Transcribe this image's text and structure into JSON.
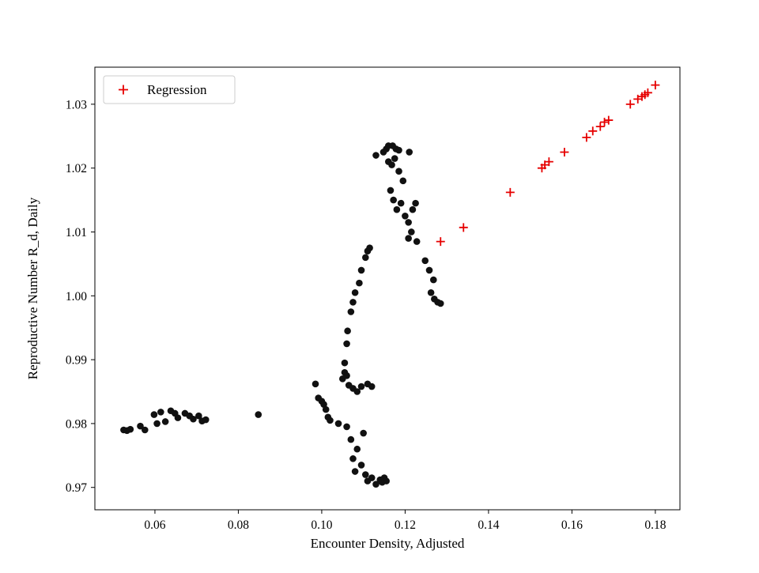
{
  "figure": {
    "background": "#ffffff"
  },
  "chart_data": {
    "type": "scatter",
    "title": "",
    "xlabel": "Encounter Density, Adjusted",
    "ylabel": "Reproductive Number R_d, Daily",
    "xlim": [
      0.0456,
      0.1859
    ],
    "ylim": [
      0.9665,
      1.0358
    ],
    "xticks": [
      0.06,
      0.08,
      0.1,
      0.12,
      0.14,
      0.16,
      0.18
    ],
    "xtick_labels": [
      "0.06",
      "0.08",
      "0.10",
      "0.12",
      "0.14",
      "0.16",
      "0.18"
    ],
    "yticks": [
      0.97,
      0.98,
      0.99,
      1.0,
      1.01,
      1.02,
      1.03
    ],
    "ytick_labels": [
      "0.97",
      "0.98",
      "0.99",
      "1.00",
      "1.01",
      "1.02",
      "1.03"
    ],
    "grid": false,
    "legend": {
      "position": "upper left",
      "entries": [
        "Regression"
      ]
    },
    "colors": {
      "observations": "#111111",
      "regression": "#e60000",
      "spine": "#000000",
      "legend_border": "#cccccc"
    },
    "series": [
      {
        "name": "observations",
        "marker": "circle",
        "color": "#111111",
        "points": [
          [
            0.0525,
            0.979
          ],
          [
            0.0533,
            0.9789
          ],
          [
            0.0541,
            0.9791
          ],
          [
            0.0565,
            0.9796
          ],
          [
            0.0576,
            0.979
          ],
          [
            0.0598,
            0.9814
          ],
          [
            0.0605,
            0.98
          ],
          [
            0.0614,
            0.9818
          ],
          [
            0.0625,
            0.9803
          ],
          [
            0.0638,
            0.982
          ],
          [
            0.0648,
            0.9816
          ],
          [
            0.0655,
            0.9809
          ],
          [
            0.0672,
            0.9816
          ],
          [
            0.0683,
            0.9812
          ],
          [
            0.0692,
            0.9807
          ],
          [
            0.0705,
            0.9812
          ],
          [
            0.0713,
            0.9804
          ],
          [
            0.0722,
            0.9806
          ],
          [
            0.0848,
            0.9814
          ],
          [
            0.0985,
            0.9862
          ],
          [
            0.0992,
            0.984
          ],
          [
            0.1,
            0.9835
          ],
          [
            0.1005,
            0.983
          ],
          [
            0.101,
            0.9822
          ],
          [
            0.1015,
            0.981
          ],
          [
            0.102,
            0.9805
          ],
          [
            0.104,
            0.98
          ],
          [
            0.105,
            0.987
          ],
          [
            0.1055,
            0.988
          ],
          [
            0.106,
            0.9875
          ],
          [
            0.1065,
            0.986
          ],
          [
            0.1075,
            0.9855
          ],
          [
            0.1085,
            0.985
          ],
          [
            0.1095,
            0.9858
          ],
          [
            0.111,
            0.9862
          ],
          [
            0.112,
            0.9858
          ],
          [
            0.106,
            0.9795
          ],
          [
            0.107,
            0.9775
          ],
          [
            0.1075,
            0.9745
          ],
          [
            0.108,
            0.9725
          ],
          [
            0.1085,
            0.976
          ],
          [
            0.1095,
            0.9735
          ],
          [
            0.11,
            0.9785
          ],
          [
            0.1105,
            0.972
          ],
          [
            0.111,
            0.971
          ],
          [
            0.112,
            0.9715
          ],
          [
            0.113,
            0.9705
          ],
          [
            0.114,
            0.9712
          ],
          [
            0.1145,
            0.9708
          ],
          [
            0.115,
            0.9715
          ],
          [
            0.1155,
            0.971
          ],
          [
            0.1055,
            0.9895
          ],
          [
            0.106,
            0.9925
          ],
          [
            0.1062,
            0.9945
          ],
          [
            0.107,
            0.9975
          ],
          [
            0.1075,
            0.999
          ],
          [
            0.108,
            1.0005
          ],
          [
            0.109,
            1.002
          ],
          [
            0.1095,
            1.004
          ],
          [
            0.1105,
            1.006
          ],
          [
            0.111,
            1.007
          ],
          [
            0.1115,
            1.0075
          ],
          [
            0.113,
            1.022
          ],
          [
            0.1148,
            1.0225
          ],
          [
            0.1155,
            1.023
          ],
          [
            0.116,
            1.0235
          ],
          [
            0.117,
            1.0235
          ],
          [
            0.1178,
            1.023
          ],
          [
            0.1185,
            1.0228
          ],
          [
            0.116,
            1.021
          ],
          [
            0.1168,
            1.0205
          ],
          [
            0.1175,
            1.0215
          ],
          [
            0.1185,
            1.0195
          ],
          [
            0.1195,
            1.018
          ],
          [
            0.121,
            1.0225
          ],
          [
            0.1165,
            1.0165
          ],
          [
            0.1172,
            1.015
          ],
          [
            0.118,
            1.0135
          ],
          [
            0.119,
            1.0145
          ],
          [
            0.12,
            1.0125
          ],
          [
            0.1208,
            1.0115
          ],
          [
            0.1218,
            1.0135
          ],
          [
            0.1225,
            1.0145
          ],
          [
            0.1215,
            1.01
          ],
          [
            0.1208,
            1.009
          ],
          [
            0.1228,
            1.0085
          ],
          [
            0.1248,
            1.0055
          ],
          [
            0.1258,
            1.004
          ],
          [
            0.1268,
            1.0025
          ],
          [
            0.1262,
            1.0005
          ],
          [
            0.127,
            0.9995
          ],
          [
            0.1278,
            0.999
          ],
          [
            0.1285,
            0.9988
          ]
        ]
      },
      {
        "name": "Regression",
        "marker": "plus",
        "color": "#e60000",
        "points": [
          [
            0.1285,
            1.0085
          ],
          [
            0.134,
            1.0107
          ],
          [
            0.1452,
            1.0162
          ],
          [
            0.1528,
            1.02
          ],
          [
            0.1535,
            1.0205
          ],
          [
            0.1545,
            1.021
          ],
          [
            0.1582,
            1.0225
          ],
          [
            0.1635,
            1.0248
          ],
          [
            0.165,
            1.0258
          ],
          [
            0.1668,
            1.0265
          ],
          [
            0.1678,
            1.0272
          ],
          [
            0.1688,
            1.0275
          ],
          [
            0.174,
            1.03
          ],
          [
            0.1758,
            1.0308
          ],
          [
            0.1768,
            1.0312
          ],
          [
            0.1775,
            1.0315
          ],
          [
            0.1782,
            1.0318
          ],
          [
            0.18,
            1.033
          ]
        ]
      }
    ]
  }
}
